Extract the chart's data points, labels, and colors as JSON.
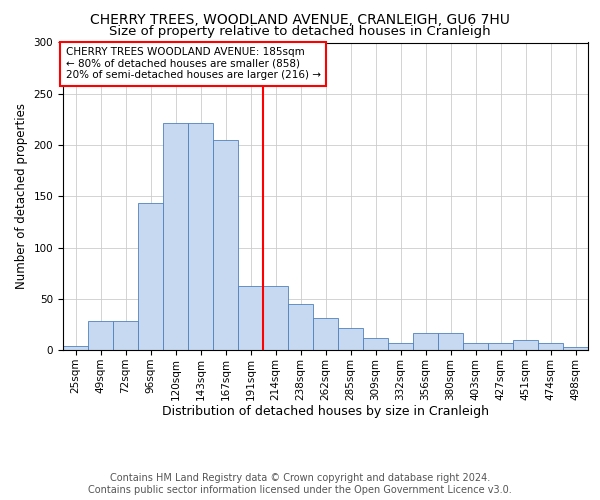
{
  "title1": "CHERRY TREES, WOODLAND AVENUE, CRANLEIGH, GU6 7HU",
  "title2": "Size of property relative to detached houses in Cranleigh",
  "xlabel": "Distribution of detached houses by size in Cranleigh",
  "ylabel": "Number of detached properties",
  "footer": "Contains HM Land Registry data © Crown copyright and database right 2024.\nContains public sector information licensed under the Open Government Licence v3.0.",
  "bar_labels": [
    "25sqm",
    "49sqm",
    "72sqm",
    "96sqm",
    "120sqm",
    "143sqm",
    "167sqm",
    "191sqm",
    "214sqm",
    "238sqm",
    "262sqm",
    "285sqm",
    "309sqm",
    "332sqm",
    "356sqm",
    "380sqm",
    "403sqm",
    "427sqm",
    "451sqm",
    "474sqm",
    "498sqm"
  ],
  "bar_values": [
    4,
    28,
    28,
    143,
    221,
    221,
    205,
    62,
    62,
    45,
    31,
    21,
    12,
    7,
    17,
    17,
    7,
    7,
    10,
    7,
    3
  ],
  "bar_color": "#c6d9f0",
  "bar_edge_color": "#4f81bd",
  "vline_x": 7.5,
  "vline_color": "red",
  "annotation_text": "CHERRY TREES WOODLAND AVENUE: 185sqm\n← 80% of detached houses are smaller (858)\n20% of semi-detached houses are larger (216) →",
  "annotation_box_color": "red",
  "ylim": [
    0,
    300
  ],
  "yticks": [
    0,
    50,
    100,
    150,
    200,
    250,
    300
  ],
  "bg_color": "#ffffff",
  "grid_color": "#cccccc",
  "title1_fontsize": 10,
  "title2_fontsize": 9.5,
  "xlabel_fontsize": 9,
  "ylabel_fontsize": 8.5,
  "tick_fontsize": 7.5,
  "annotation_fontsize": 7.5,
  "footer_fontsize": 7
}
